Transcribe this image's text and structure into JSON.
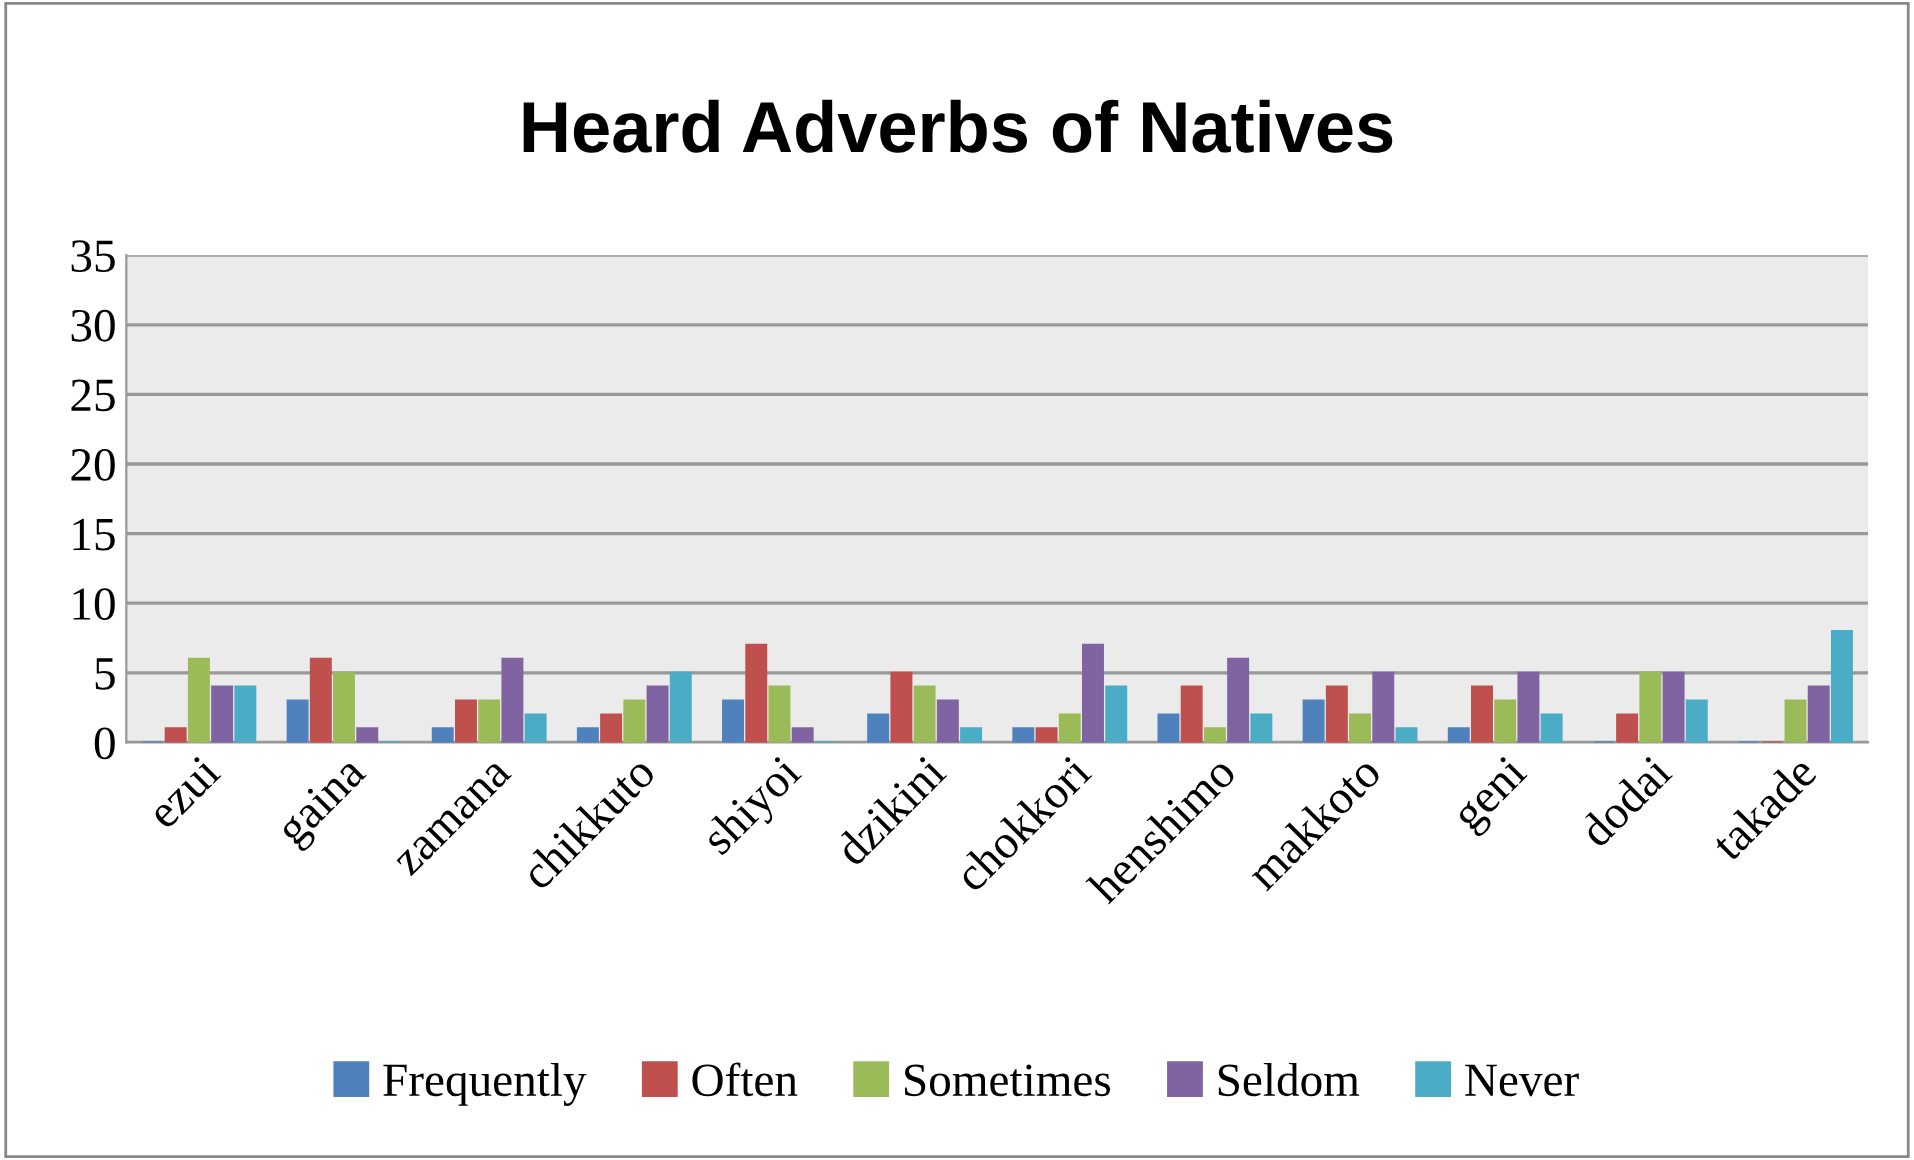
{
  "chart_data": {
    "type": "bar",
    "title": "Heard Adverbs of Natives",
    "categories": [
      "ezui",
      "gaina",
      "zamana",
      "chikkuto",
      "shiyoi",
      "dzikini",
      "chokkori",
      "henshimo",
      "makkoto",
      "geni",
      "dodai",
      "takade"
    ],
    "series": [
      {
        "name": "Frequently",
        "color": "#4f81bd",
        "values": [
          0,
          3,
          1,
          1,
          3,
          2,
          1,
          2,
          3,
          1,
          0,
          0
        ]
      },
      {
        "name": "Often",
        "color": "#c0504d",
        "values": [
          1,
          6,
          3,
          2,
          7,
          5,
          1,
          4,
          4,
          4,
          2,
          0
        ]
      },
      {
        "name": "Sometimes",
        "color": "#9bbb59",
        "values": [
          6,
          5,
          3,
          3,
          4,
          4,
          2,
          1,
          2,
          3,
          5,
          3
        ]
      },
      {
        "name": "Seldom",
        "color": "#8064a2",
        "values": [
          4,
          1,
          6,
          4,
          1,
          3,
          7,
          6,
          5,
          5,
          5,
          4
        ]
      },
      {
        "name": "Never",
        "color": "#4bacc6",
        "values": [
          4,
          0,
          2,
          5,
          0,
          1,
          4,
          2,
          1,
          2,
          3,
          8
        ]
      }
    ],
    "ylim": [
      0,
      35
    ],
    "yticks": [
      0,
      5,
      10,
      15,
      20,
      25,
      30,
      35
    ],
    "grid": "y",
    "legend": "bottom"
  }
}
